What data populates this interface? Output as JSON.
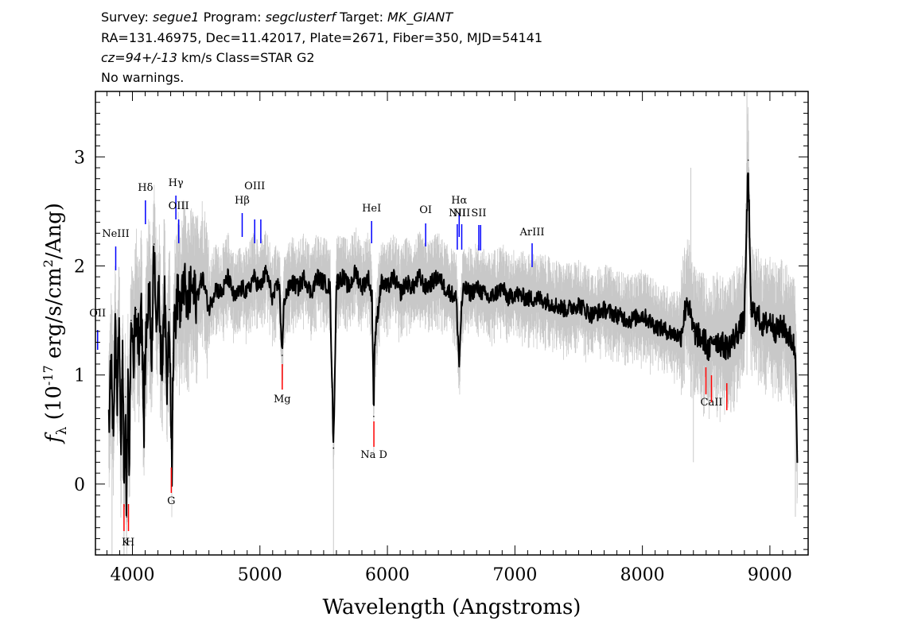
{
  "header": {
    "survey_label": "Survey:",
    "survey": "segue1",
    "program_label": "Program:",
    "program": "segclusterf",
    "target_label": "Target:",
    "target": "MK_GIANT",
    "line2": "RA=131.46975, Dec=11.42017, Plate=2671, Fiber=350, MJD=54141",
    "cz": "cz=94+/-13",
    "line3_rest": " km/s Class=STAR G2",
    "line4": "No warnings."
  },
  "chart_data": {
    "type": "line",
    "xlabel": "Wavelength (Angstroms)",
    "ylabel": "f_λ (10^-17 erg/s/cm^2/Ang)",
    "xlim": [
      3710,
      9300
    ],
    "ylim": [
      -0.65,
      3.6
    ],
    "x_ticks": [
      4000,
      5000,
      6000,
      7000,
      8000,
      9000
    ],
    "y_ticks": [
      0,
      1,
      2,
      3
    ],
    "grid": false,
    "series": [
      {
        "name": "",
        "color": "#000000",
        "x": [
          3815,
          3835,
          3850,
          3865,
          3880,
          3895,
          3910,
          3925,
          3935,
          3945,
          3955,
          3965,
          3975,
          3990,
          4010,
          4030,
          4050,
          4070,
          4090,
          4101,
          4115,
          4130,
          4150,
          4170,
          4190,
          4210,
          4230,
          4250,
          4270,
          4290,
          4310,
          4320,
          4330,
          4345,
          4360,
          4380,
          4400,
          4430,
          4460,
          4500,
          4550,
          4600,
          4650,
          4700,
          4750,
          4800,
          4861,
          4900,
          4950,
          5000,
          5050,
          5100,
          5150,
          5175,
          5190,
          5250,
          5300,
          5350,
          5400,
          5450,
          5500,
          5550,
          5577,
          5600,
          5650,
          5700,
          5750,
          5800,
          5850,
          5880,
          5893,
          5900,
          5950,
          6000,
          6050,
          6100,
          6150,
          6200,
          6250,
          6300,
          6350,
          6400,
          6450,
          6500,
          6540,
          6563,
          6580,
          6600,
          6650,
          6700,
          6750,
          6800,
          6850,
          6900,
          6950,
          7000,
          7100,
          7200,
          7300,
          7400,
          7500,
          7600,
          7700,
          7800,
          7900,
          8000,
          8100,
          8200,
          8300,
          8350,
          8400,
          8450,
          8498,
          8520,
          8542,
          8560,
          8600,
          8662,
          8700,
          8750,
          8800,
          8830,
          8850,
          8900,
          8950,
          9000,
          9050,
          9100,
          9150,
          9180,
          9200,
          9215
        ],
        "y": [
          0.6,
          1.1,
          0.5,
          1.4,
          0.8,
          1.5,
          0.3,
          1.2,
          -0.2,
          0.8,
          -0.3,
          0.9,
          0.2,
          1.5,
          1.2,
          1.6,
          1.3,
          1.7,
          0.5,
          1.2,
          1.5,
          1.8,
          1.2,
          2.2,
          1.5,
          1.7,
          1.0,
          1.8,
          0.9,
          1.6,
          0.2,
          1.2,
          1.5,
          1.6,
          1.8,
          1.5,
          1.9,
          1.6,
          1.8,
          1.7,
          1.9,
          1.6,
          1.8,
          1.75,
          1.9,
          1.7,
          1.8,
          1.75,
          1.9,
          1.8,
          1.95,
          1.7,
          1.85,
          1.18,
          1.7,
          1.85,
          1.8,
          1.9,
          1.75,
          1.9,
          1.85,
          1.8,
          0.33,
          1.85,
          1.9,
          1.8,
          1.95,
          1.8,
          1.9,
          1.7,
          0.62,
          1.3,
          1.85,
          1.8,
          1.9,
          1.75,
          1.85,
          1.8,
          1.9,
          1.8,
          1.85,
          1.9,
          1.8,
          1.75,
          1.7,
          1.1,
          1.6,
          1.8,
          1.75,
          1.8,
          1.75,
          1.7,
          1.75,
          1.8,
          1.7,
          1.75,
          1.7,
          1.7,
          1.65,
          1.6,
          1.65,
          1.55,
          1.6,
          1.55,
          1.5,
          1.55,
          1.45,
          1.4,
          1.35,
          1.7,
          1.4,
          1.35,
          1.3,
          1.2,
          1.3,
          1.35,
          1.3,
          1.25,
          1.3,
          1.4,
          1.5,
          2.97,
          1.6,
          1.55,
          1.45,
          1.5,
          1.4,
          1.45,
          1.35,
          1.3,
          1.2,
          0.3
        ]
      }
    ],
    "noise_color": "#c8c8c8",
    "emission_lines": [
      {
        "label": "OII",
        "wave": 3727
      },
      {
        "label": "NeIII",
        "wave": 3869
      },
      {
        "label": "Hδ",
        "wave": 4102
      },
      {
        "label": "Hγ",
        "wave": 4341
      },
      {
        "label": "OIII",
        "wave": 4363
      },
      {
        "label": "Hβ",
        "wave": 4861
      },
      {
        "label": "OIII",
        "wave": 4959
      },
      {
        "label": "OIII",
        "wave": 5007
      },
      {
        "label": "HeI",
        "wave": 5876
      },
      {
        "label": "OI",
        "wave": 6300
      },
      {
        "label": "NII",
        "wave": 6548
      },
      {
        "label": "Hα",
        "wave": 6563
      },
      {
        "label": "NII",
        "wave": 6583
      },
      {
        "label": "SII",
        "wave": 6717
      },
      {
        "label": "SII",
        "wave": 6731
      },
      {
        "label": "ArIII",
        "wave": 7135
      }
    ],
    "absorption_lines": [
      {
        "label": "K",
        "wave": 3934
      },
      {
        "label": "H",
        "wave": 3969
      },
      {
        "label": "G",
        "wave": 4305
      },
      {
        "label": "Mg",
        "wave": 5175
      },
      {
        "label": "Na D",
        "wave": 5894
      },
      {
        "label": "CaII",
        "wave": 8498
      },
      {
        "label": "CaII",
        "wave": 8542
      },
      {
        "label": "CaII",
        "wave": 8662
      }
    ],
    "emission_color": "#0000ff",
    "absorption_color": "#ff0000"
  }
}
